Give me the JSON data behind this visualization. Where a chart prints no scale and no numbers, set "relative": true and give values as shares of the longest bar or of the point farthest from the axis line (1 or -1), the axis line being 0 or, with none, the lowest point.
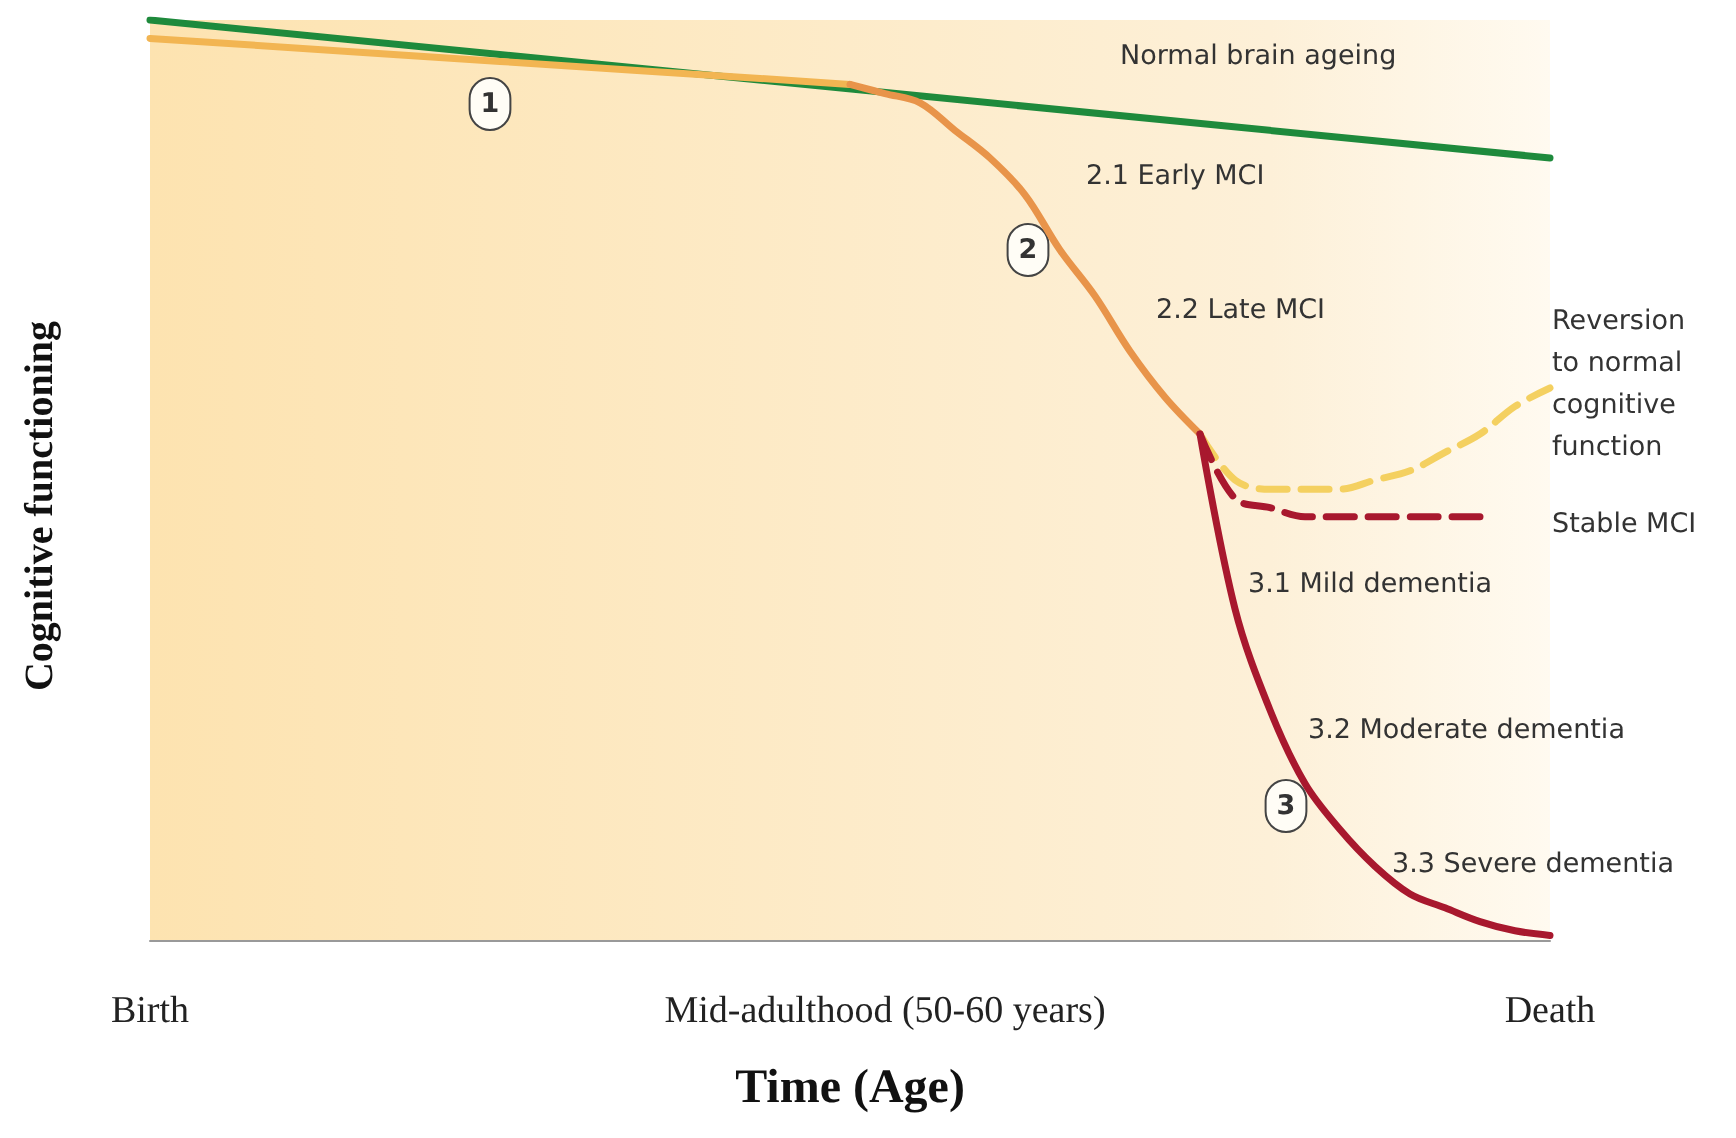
{
  "chart_data": {
    "type": "line",
    "relative": true,
    "xlabel": "Time (Age)",
    "ylabel": "Cognitive functioning",
    "marker": "none",
    "grid": false,
    "categories": [
      "Birth",
      null,
      null,
      null,
      null,
      null,
      null,
      null,
      null,
      null,
      null,
      null,
      null,
      null,
      null,
      null,
      null,
      null,
      null,
      null,
      null,
      "Mid-adulthood (50-60 years)",
      null,
      null,
      null,
      null,
      null,
      null,
      null,
      null,
      null,
      null,
      null,
      null,
      null,
      null,
      null,
      null,
      null,
      null,
      "Death"
    ],
    "series": [
      {
        "color": "#1e8a3c",
        "values": [
          1.0,
          null,
          null,
          null,
          null,
          null,
          null,
          null,
          null,
          null,
          null,
          null,
          null,
          null,
          null,
          null,
          null,
          null,
          null,
          null,
          null,
          null,
          null,
          null,
          null,
          null,
          null,
          null,
          null,
          null,
          null,
          null,
          null,
          null,
          null,
          null,
          null,
          null,
          null,
          null,
          0.85
        ]
      },
      {
        "color": "#f2b552",
        "values": [
          0.98,
          null,
          null,
          null,
          null,
          null,
          null,
          null,
          null,
          null,
          0.955,
          null,
          null,
          null,
          null,
          null,
          null,
          null,
          null,
          null,
          0.93,
          null,
          null,
          null,
          null,
          null,
          null,
          null,
          null,
          null,
          null,
          null,
          null,
          null,
          null,
          null,
          null,
          null,
          null,
          null,
          null
        ]
      },
      {
        "color": "#e8944a",
        "values": [
          null,
          null,
          null,
          null,
          null,
          null,
          null,
          null,
          null,
          null,
          null,
          null,
          null,
          null,
          null,
          null,
          null,
          null,
          null,
          null,
          0.93,
          0.92,
          0.91,
          0.88,
          0.85,
          0.81,
          0.75,
          0.7,
          0.64,
          0.59,
          0.55,
          null,
          null,
          null,
          null,
          null,
          null,
          null,
          null,
          null,
          null
        ]
      },
      {
        "color": "#f4d060",
        "line_style": "dashed",
        "values": [
          null,
          null,
          null,
          null,
          null,
          null,
          null,
          null,
          null,
          null,
          null,
          null,
          null,
          null,
          null,
          null,
          null,
          null,
          null,
          null,
          null,
          null,
          null,
          null,
          null,
          null,
          null,
          null,
          null,
          null,
          0.55,
          0.5,
          0.49,
          0.49,
          0.49,
          0.5,
          0.51,
          0.53,
          0.55,
          0.58,
          0.6
        ]
      },
      {
        "color": "#a8182e",
        "line_style": "dashed",
        "values": [
          null,
          null,
          null,
          null,
          null,
          null,
          null,
          null,
          null,
          null,
          null,
          null,
          null,
          null,
          null,
          null,
          null,
          null,
          null,
          null,
          null,
          null,
          null,
          null,
          null,
          null,
          null,
          null,
          null,
          null,
          0.55,
          0.48,
          0.47,
          0.46,
          0.46,
          0.46,
          0.46,
          0.46,
          0.46,
          null,
          null
        ]
      },
      {
        "color": "#a8182e",
        "values": [
          null,
          null,
          null,
          null,
          null,
          null,
          null,
          null,
          null,
          null,
          null,
          null,
          null,
          null,
          null,
          null,
          null,
          null,
          null,
          null,
          null,
          null,
          null,
          null,
          null,
          null,
          null,
          null,
          null,
          null,
          0.55,
          0.36,
          0.25,
          0.17,
          0.12,
          0.08,
          0.05,
          0.035,
          0.02,
          0.01,
          0.005
        ]
      }
    ],
    "annotations": [
      "Normal brain ageing",
      "1",
      "2.1 Early MCI",
      "2",
      "2.2 Late MCI",
      "Reversion\nto normal\ncognitive\nfunction",
      "Stable MCI",
      "3.1 Mild dementia",
      "3.2 Moderate dementia",
      "3",
      "3.3 Severe dementia"
    ]
  }
}
